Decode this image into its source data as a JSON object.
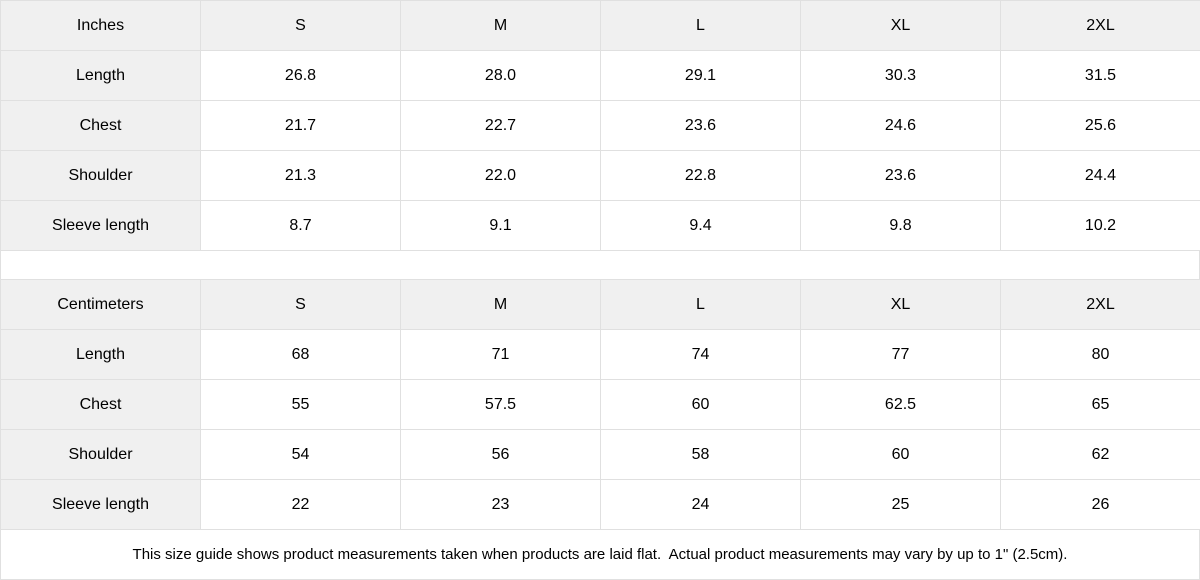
{
  "tables": [
    {
      "unit_label": "Inches",
      "sizes": [
        "S",
        "M",
        "L",
        "XL",
        "2XL"
      ],
      "rows": [
        {
          "label": "Length",
          "values": [
            "26.8",
            "28.0",
            "29.1",
            "30.3",
            "31.5"
          ]
        },
        {
          "label": "Chest",
          "values": [
            "21.7",
            "22.7",
            "23.6",
            "24.6",
            "25.6"
          ]
        },
        {
          "label": "Shoulder",
          "values": [
            "21.3",
            "22.0",
            "22.8",
            "23.6",
            "24.4"
          ]
        },
        {
          "label": "Sleeve length",
          "values": [
            "8.7",
            "9.1",
            "9.4",
            "9.8",
            "10.2"
          ]
        }
      ]
    },
    {
      "unit_label": "Centimeters",
      "sizes": [
        "S",
        "M",
        "L",
        "XL",
        "2XL"
      ],
      "rows": [
        {
          "label": "Length",
          "values": [
            "68",
            "71",
            "74",
            "77",
            "80"
          ]
        },
        {
          "label": "Chest",
          "values": [
            "55",
            "57.5",
            "60",
            "62.5",
            "65"
          ]
        },
        {
          "label": "Shoulder",
          "values": [
            "54",
            "56",
            "58",
            "60",
            "62"
          ]
        },
        {
          "label": "Sleeve length",
          "values": [
            "22",
            "23",
            "24",
            "25",
            "26"
          ]
        }
      ]
    }
  ],
  "footer": {
    "note": "This size guide shows product measurements taken when products are laid flat.  Actual product measurements may vary by up to 1\" (2.5cm)."
  },
  "colors": {
    "header_bg": "#f0f0f0",
    "cell_bg": "#ffffff",
    "border": "#e0e0e0",
    "text": "#000000"
  }
}
